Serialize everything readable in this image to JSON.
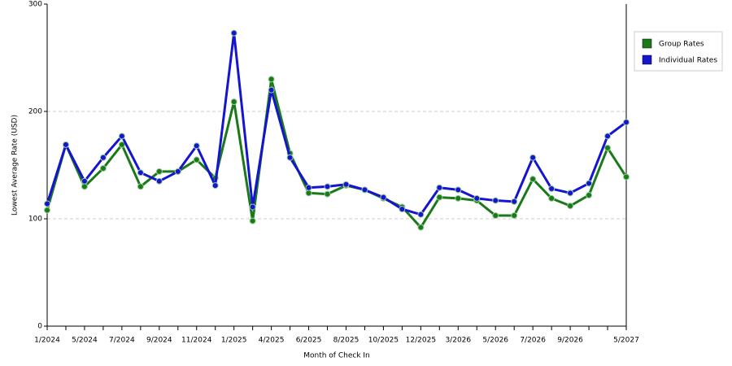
{
  "chart_data": {
    "type": "line",
    "x_label": "Month of Check In",
    "y_label": "Lowest Average Rate (USD)",
    "categories": [
      "1/2024",
      null,
      "5/2024",
      null,
      "7/2024",
      null,
      "9/2024",
      null,
      "11/2024",
      null,
      "1/2025",
      null,
      "4/2025",
      null,
      "6/2025",
      null,
      "8/2025",
      null,
      "10/2025",
      null,
      "12/2025",
      null,
      "3/2026",
      null,
      "5/2026",
      null,
      "7/2026",
      null,
      "9/2026",
      null,
      null,
      "5/2027"
    ],
    "series": [
      {
        "name": "Group Rates",
        "color": "#1a7a1a",
        "values": [
          108,
          169,
          130,
          147,
          169,
          130,
          144,
          144,
          155,
          138,
          209,
          98,
          230,
          161,
          124,
          123,
          131,
          127,
          119,
          111,
          92,
          120,
          119,
          117,
          103,
          103,
          137,
          119,
          112,
          122,
          166,
          139
        ]
      },
      {
        "name": "Individual Rates",
        "color": "#1515d0",
        "values": [
          114,
          169,
          135,
          157,
          177,
          143,
          135,
          144,
          168,
          131,
          273,
          111,
          220,
          157,
          129,
          130,
          132,
          127,
          120,
          109,
          104,
          129,
          127,
          119,
          117,
          116,
          157,
          128,
          124,
          133,
          177,
          190
        ]
      }
    ],
    "ylim": [
      0,
      300
    ],
    "yticks": [
      0,
      100,
      200,
      300
    ],
    "grid": true,
    "legend": "right"
  }
}
